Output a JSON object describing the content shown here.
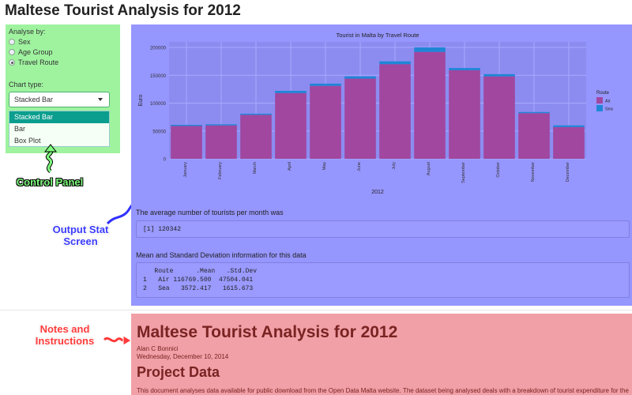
{
  "page": {
    "title": "Maltese Tourist Analysis for 2012"
  },
  "control_panel": {
    "analyse_label": "Analyse by:",
    "options": [
      {
        "label": "Sex",
        "checked": false
      },
      {
        "label": "Age Group",
        "checked": false
      },
      {
        "label": "Travel Route",
        "checked": true
      }
    ],
    "chart_type_label": "Chart type:",
    "chart_type_value": "Stacked Bar",
    "dropdown_options": [
      "Stacked Bar",
      "Bar",
      "Box Plot"
    ]
  },
  "annotations": {
    "control": "Control Panel",
    "output": "Output Stat Screen",
    "notes": "Notes and Instructions"
  },
  "chart_data": {
    "type": "bar",
    "stacked": true,
    "title": "Tourist in Malta by Travel Route",
    "xlabel": "2012",
    "ylabel": "Euro",
    "ylim": [
      0,
      210000
    ],
    "yticks": [
      0,
      50000,
      100000,
      150000,
      200000
    ],
    "legend_title": "Route",
    "legend_position": "right",
    "grid": true,
    "categories": [
      "January",
      "February",
      "March",
      "April",
      "May",
      "June",
      "July",
      "August",
      "September",
      "October",
      "November",
      "December"
    ],
    "series": [
      {
        "name": "Air",
        "color": "#a1479f",
        "values": [
          59000,
          60000,
          79000,
          118000,
          131000,
          144000,
          170000,
          192000,
          159000,
          148000,
          82000,
          57000
        ]
      },
      {
        "name": "Sea",
        "color": "#1f86d6",
        "values": [
          2000,
          2000,
          2000,
          4000,
          4000,
          4000,
          5000,
          8000,
          4000,
          4000,
          2000,
          3000
        ]
      }
    ]
  },
  "output": {
    "avg_text": "The average number of tourists per month was",
    "avg_console": "[1] 120342",
    "meanstd_text": "Mean and Standard Deviation information for this data",
    "meanstd_console": "   Route      .Mean   .Std.Dev\n1   Air 116769.500  47504.041\n2   Sea   3572.417   1615.673"
  },
  "notes_doc": {
    "title": "Maltese Tourist Analysis for 2012",
    "author": "Alan C Bonnici",
    "date": "Wednesday, December 10, 2014",
    "heading": "Project Data",
    "body": "This document analyses data available for public download from the Open Data Malta website. The dataset being analysed deals with a breakdown of tourist expenditure for the"
  }
}
